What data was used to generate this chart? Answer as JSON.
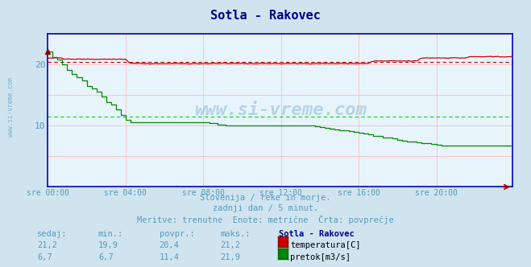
{
  "title": "Sotla - Rakovec",
  "bg_color": "#d0e4f0",
  "plot_bg_color": "#e8f4fc",
  "grid_color_v": "#ffbbbb",
  "grid_color_h": "#ffbbbb",
  "xlabel_color": "#5599bb",
  "xtick_labels": [
    "sre 00:00",
    "sre 04:00",
    "sre 08:00",
    "sre 12:00",
    "sre 16:00",
    "sre 20:00"
  ],
  "xtick_positions": [
    0,
    48,
    96,
    144,
    192,
    240
  ],
  "total_points": 288,
  "ylim_temp": [
    0,
    25
  ],
  "ylim_flow": [
    0,
    25
  ],
  "yticks": [
    10,
    20
  ],
  "temp_color": "#cc0000",
  "flow_color": "#008800",
  "avg_temp_color": "#cc0000",
  "avg_flow_color": "#00dd00",
  "avg_temp": 20.4,
  "avg_flow": 11.4,
  "border_color": "#0000cc",
  "subtitle1": "Slovenija / reke in morje.",
  "subtitle2": "zadnji dan / 5 minut.",
  "subtitle3": "Meritve: trenutne  Enote: metrične  Črta: povprečje",
  "subtitle_color": "#5599bb",
  "table_header": [
    "sedaj:",
    "min.:",
    "povpr.:",
    "maks.:",
    "Sotla - Rakovec"
  ],
  "table_temp": [
    "21,2",
    "19,9",
    "20,4",
    "21,2"
  ],
  "table_flow": [
    "6,7",
    "6,7",
    "11,4",
    "21,9"
  ],
  "table_color": "#5599bb",
  "table_header_color": "#000088",
  "watermark": "www.si-vreme.com",
  "watermark_color": "#5599bb",
  "title_color": "#000088"
}
